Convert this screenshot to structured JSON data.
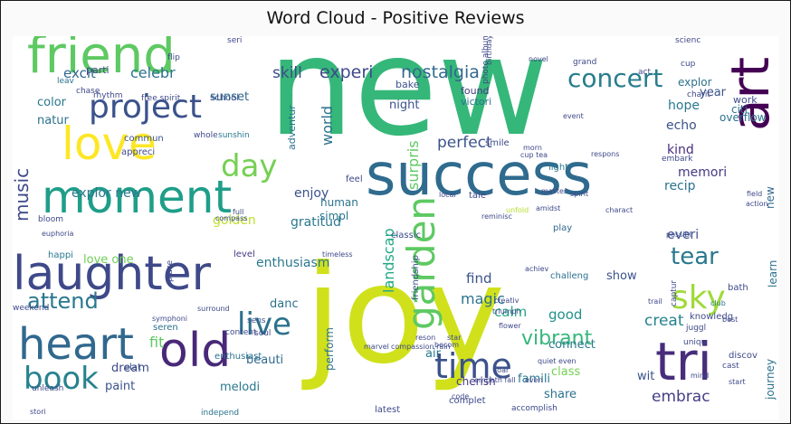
{
  "chart_data": {
    "type": "wordcloud",
    "title": "Word Cloud - Positive Reviews",
    "words": [
      {
        "text": "new",
        "weight": 100,
        "color": "#35b779"
      },
      {
        "text": "joy",
        "weight": 98,
        "color": "#d0e11c"
      },
      {
        "text": "success",
        "weight": 55,
        "color": "#2f6b8e"
      },
      {
        "text": "friend",
        "weight": 40,
        "color": "#5ec962"
      },
      {
        "text": "laughter",
        "weight": 40,
        "color": "#3e4989"
      },
      {
        "text": "moment",
        "weight": 38,
        "color": "#1f9e89"
      },
      {
        "text": "heart",
        "weight": 38,
        "color": "#31688e"
      },
      {
        "text": "love",
        "weight": 36,
        "color": "#fde725"
      },
      {
        "text": "art",
        "weight": 33,
        "color": "#440154"
      },
      {
        "text": "old",
        "weight": 32,
        "color": "#482878"
      },
      {
        "text": "project",
        "weight": 30,
        "color": "#3b528b"
      },
      {
        "text": "tri",
        "weight": 30,
        "color": "#472d7b"
      },
      {
        "text": "garden",
        "weight": 27,
        "color": "#5ec962"
      },
      {
        "text": "time",
        "weight": 27,
        "color": "#3b528b"
      },
      {
        "text": "book",
        "weight": 27,
        "color": "#26828e"
      },
      {
        "text": "live",
        "weight": 25,
        "color": "#2c728e"
      },
      {
        "text": "sky",
        "weight": 25,
        "color": "#a0da39"
      },
      {
        "text": "day",
        "weight": 24,
        "color": "#75d054"
      },
      {
        "text": "concert",
        "weight": 20,
        "color": "#287d8e"
      },
      {
        "text": "tear",
        "weight": 18,
        "color": "#2a788e"
      },
      {
        "text": "attend",
        "weight": 18,
        "color": "#2a788e"
      },
      {
        "text": "music",
        "weight": 16,
        "color": "#3e4989"
      },
      {
        "text": "vibrant",
        "weight": 16,
        "color": "#35b779"
      },
      {
        "text": "nostalgia",
        "weight": 14,
        "color": "#31688e"
      },
      {
        "text": "experi",
        "weight": 14,
        "color": "#3e4989"
      },
      {
        "text": "perfect",
        "weight": 14,
        "color": "#3b528b"
      },
      {
        "text": "surpris",
        "weight": 14,
        "color": "#5ec962"
      },
      {
        "text": "landscap",
        "weight": 14,
        "color": "#22a884"
      },
      {
        "text": "world",
        "weight": 13,
        "color": "#2c728e"
      },
      {
        "text": "creat",
        "weight": 14,
        "color": "#26828e"
      },
      {
        "text": "embrac",
        "weight": 14,
        "color": "#433e85"
      },
      {
        "text": "skill",
        "weight": 13,
        "color": "#3e4989"
      },
      {
        "text": "celebr",
        "weight": 13,
        "color": "#2c728e"
      },
      {
        "text": "excit",
        "weight": 12,
        "color": "#31688e"
      },
      {
        "text": "magic",
        "weight": 13,
        "color": "#2c728e"
      },
      {
        "text": "calm",
        "weight": 13,
        "color": "#22a884"
      },
      {
        "text": "good",
        "weight": 13,
        "color": "#21918c"
      },
      {
        "text": "fit",
        "weight": 12,
        "color": "#5ec962"
      },
      {
        "text": "explor new",
        "weight": 11,
        "color": "#2a788e"
      },
      {
        "text": "gratitud",
        "weight": 11,
        "color": "#2a788e"
      },
      {
        "text": "enthusiasm",
        "weight": 11,
        "color": "#2a788e"
      },
      {
        "text": "natur",
        "weight": 11,
        "color": "#2c728e"
      },
      {
        "text": "color",
        "weight": 10,
        "color": "#2a788e"
      },
      {
        "text": "golden",
        "weight": 11,
        "color": "#bddf26"
      },
      {
        "text": "enjoy",
        "weight": 11,
        "color": "#3b528b"
      },
      {
        "text": "hope",
        "weight": 11,
        "color": "#2a788e"
      },
      {
        "text": "echo",
        "weight": 11,
        "color": "#3b528b"
      },
      {
        "text": "kind",
        "weight": 11,
        "color": "#472d7b"
      },
      {
        "text": "memori",
        "weight": 11,
        "color": "#443983"
      },
      {
        "text": "recip",
        "weight": 11,
        "color": "#2c728e"
      },
      {
        "text": "everi",
        "weight": 11,
        "color": "#3b528b"
      },
      {
        "text": "show",
        "weight": 10,
        "color": "#3b528b"
      },
      {
        "text": "love one",
        "weight": 10,
        "color": "#6ece58"
      },
      {
        "text": "paint",
        "weight": 10,
        "color": "#3b528b"
      },
      {
        "text": "dream",
        "weight": 10,
        "color": "#3e4989"
      },
      {
        "text": "melodi",
        "weight": 10,
        "color": "#2a788e"
      },
      {
        "text": "beauti",
        "weight": 10,
        "color": "#31688e"
      },
      {
        "text": "danc",
        "weight": 10,
        "color": "#2c728e"
      },
      {
        "text": "find",
        "weight": 11,
        "color": "#3b528b"
      },
      {
        "text": "connect",
        "weight": 10,
        "color": "#2a788e"
      },
      {
        "text": "class",
        "weight": 10,
        "color": "#75d054"
      },
      {
        "text": "share",
        "weight": 10,
        "color": "#2c728e"
      },
      {
        "text": "wit",
        "weight": 10,
        "color": "#3b528b"
      },
      {
        "text": "journey",
        "weight": 9,
        "color": "#2c728e"
      },
      {
        "text": "learn",
        "weight": 9,
        "color": "#2c728e"
      },
      {
        "text": "new",
        "weight": 9,
        "color": "#31688e"
      },
      {
        "text": "sunset",
        "weight": 9,
        "color": "#31688e"
      },
      {
        "text": "night",
        "weight": 9,
        "color": "#3b528b"
      },
      {
        "text": "year",
        "weight": 9,
        "color": "#3b528b"
      },
      {
        "text": "explor",
        "weight": 9,
        "color": "#2c728e"
      },
      {
        "text": "famili",
        "weight": 9,
        "color": "#2a788e"
      },
      {
        "text": "cherish",
        "weight": 9,
        "color": "#443983"
      },
      {
        "text": "air",
        "weight": 9,
        "color": "#2a788e"
      },
      {
        "text": "perform",
        "weight": 9,
        "color": "#2c728e"
      },
      {
        "text": "human",
        "weight": 9,
        "color": "#2c728e"
      },
      {
        "text": "simpl",
        "weight": 9,
        "color": "#2a788e"
      },
      {
        "text": "found",
        "weight": 8,
        "color": "#443983"
      },
      {
        "text": "victori",
        "weight": 8,
        "color": "#2c728e"
      },
      {
        "text": "bake",
        "weight": 8,
        "color": "#3b528b"
      },
      {
        "text": "adventur",
        "weight": 8,
        "color": "#2c728e"
      },
      {
        "text": "parti",
        "weight": 8,
        "color": "#3e4989"
      },
      {
        "text": "happi",
        "weight": 7,
        "color": "#2a788e"
      },
      {
        "text": "level",
        "weight": 7,
        "color": "#443983"
      },
      {
        "text": "seren",
        "weight": 7,
        "color": "#2c728e"
      },
      {
        "text": "enthusiast",
        "weight": 7,
        "color": "#2c728e"
      },
      {
        "text": "elat",
        "weight": 7,
        "color": "#3b528b"
      },
      {
        "text": "commun",
        "weight": 7,
        "color": "#3b528b"
      },
      {
        "text": "appreci",
        "weight": 7,
        "color": "#3e4989"
      },
      {
        "text": "whole",
        "weight": 6,
        "color": "#3e4989"
      },
      {
        "text": "sunshin",
        "weight": 6,
        "color": "#2a788e"
      },
      {
        "text": "school",
        "weight": 7,
        "color": "#3b528b"
      },
      {
        "text": "friendship",
        "weight": 7,
        "color": "#3b528b"
      },
      {
        "text": "challeng",
        "weight": 7,
        "color": "#2c728e"
      },
      {
        "text": "play",
        "weight": 7,
        "color": "#31688e"
      },
      {
        "text": "light",
        "weight": 7,
        "color": "#2a788e"
      },
      {
        "text": "tale",
        "weight": 7,
        "color": "#3e4989"
      },
      {
        "text": "smile",
        "weight": 7,
        "color": "#3e4989"
      },
      {
        "text": "feel",
        "weight": 7,
        "color": "#3e4989"
      },
      {
        "text": "classic",
        "weight": 7,
        "color": "#3e4989"
      },
      {
        "text": "latest",
        "weight": 7,
        "color": "#3e4989"
      },
      {
        "text": "complet",
        "weight": 7,
        "color": "#3e4989"
      },
      {
        "text": "accomplish",
        "weight": 6,
        "color": "#3e4989"
      },
      {
        "text": "sens",
        "weight": 6,
        "color": "#3b528b"
      },
      {
        "text": "content",
        "weight": 6,
        "color": "#3e4989"
      },
      {
        "text": "independ",
        "weight": 6,
        "color": "#2c728e"
      },
      {
        "text": "unleash",
        "weight": 6,
        "color": "#3e4989"
      },
      {
        "text": "stori",
        "weight": 6,
        "color": "#3e4989"
      },
      {
        "text": "weekend",
        "weight": 6,
        "color": "#3e4989"
      },
      {
        "text": "soul",
        "weight": 6,
        "color": "#3e4989"
      },
      {
        "text": "place",
        "weight": 6,
        "color": "#3e4989"
      },
      {
        "text": "bloom",
        "weight": 6,
        "color": "#3e4989"
      },
      {
        "text": "rhythm",
        "weight": 6,
        "color": "#3e4989"
      },
      {
        "text": "free spirit",
        "weight": 6,
        "color": "#3e4989"
      },
      {
        "text": "chase",
        "weight": 6,
        "color": "#3e4989"
      },
      {
        "text": "leav",
        "weight": 6,
        "color": "#2c728e"
      },
      {
        "text": "flip",
        "weight": 6,
        "color": "#3e4989"
      },
      {
        "text": "seri",
        "weight": 6,
        "color": "#3e4989"
      },
      {
        "text": "scienc",
        "weight": 6,
        "color": "#3e4989"
      },
      {
        "text": "grand",
        "weight": 6,
        "color": "#3e4989"
      },
      {
        "text": "act",
        "weight": 6,
        "color": "#3e4989"
      },
      {
        "text": "novel",
        "weight": 6,
        "color": "#3e4989"
      },
      {
        "text": "citi",
        "weight": 8,
        "color": "#2c728e"
      },
      {
        "text": "work",
        "weight": 7,
        "color": "#3e4989"
      },
      {
        "text": "overflow",
        "weight": 8,
        "color": "#2c728e"
      },
      {
        "text": "embark",
        "weight": 6,
        "color": "#3e4989"
      },
      {
        "text": "charit",
        "weight": 6,
        "color": "#3e4989"
      },
      {
        "text": "photo album",
        "weight": 6,
        "color": "#3e4989"
      },
      {
        "text": "birthday",
        "weight": 6,
        "color": "#3e4989"
      },
      {
        "text": "cup",
        "weight": 6,
        "color": "#3e4989"
      },
      {
        "text": "morn",
        "weight": 5,
        "color": "#3e4989"
      },
      {
        "text": "cup tea",
        "weight": 5,
        "color": "#3e4989"
      },
      {
        "text": "respons",
        "weight": 5,
        "color": "#3e4989"
      },
      {
        "text": "event",
        "weight": 5,
        "color": "#3e4989"
      },
      {
        "text": "compass",
        "weight": 5,
        "color": "#3e4989"
      },
      {
        "text": "timeless",
        "weight": 5,
        "color": "#3e4989"
      },
      {
        "text": "local",
        "weight": 5,
        "color": "#3e4989"
      },
      {
        "text": "reminisc",
        "weight": 5,
        "color": "#3e4989"
      },
      {
        "text": "unfold",
        "weight": 5,
        "color": "#b5de2b"
      },
      {
        "text": "master",
        "weight": 5,
        "color": "#3e4989"
      },
      {
        "text": "amidst",
        "weight": 5,
        "color": "#3e4989"
      },
      {
        "text": "spirit",
        "weight": 5,
        "color": "#3e4989"
      },
      {
        "text": "charact",
        "weight": 5,
        "color": "#3e4989"
      },
      {
        "text": "field",
        "weight": 5,
        "color": "#3e4989"
      },
      {
        "text": "action",
        "weight": 5,
        "color": "#3e4989"
      },
      {
        "text": "possibl",
        "weight": 5,
        "color": "#3e4989"
      },
      {
        "text": "trail",
        "weight": 5,
        "color": "#3e4989"
      },
      {
        "text": "bath",
        "weight": 5,
        "color": "#3e4989"
      },
      {
        "text": "club",
        "weight": 7,
        "color": "#2c728e"
      },
      {
        "text": "captur",
        "weight": 5,
        "color": "#3e4989"
      },
      {
        "text": "knowledg",
        "weight": 6,
        "color": "#3e4989"
      },
      {
        "text": "juggl",
        "weight": 7,
        "color": "#3e4989"
      },
      {
        "text": "best",
        "weight": 6,
        "color": "#3e4989"
      },
      {
        "text": "uniqu",
        "weight": 5,
        "color": "#3e4989"
      },
      {
        "text": "discov",
        "weight": 6,
        "color": "#3e4989"
      },
      {
        "text": "cast",
        "weight": 7,
        "color": "#3e4989"
      },
      {
        "text": "mind",
        "weight": 6,
        "color": "#3e4989"
      },
      {
        "text": "start",
        "weight": 5,
        "color": "#3e4989"
      },
      {
        "text": "creativ",
        "weight": 5,
        "color": "#3e4989"
      },
      {
        "text": "triumph",
        "weight": 5,
        "color": "#3e4989"
      },
      {
        "text": "flower",
        "weight": 5,
        "color": "#3e4989"
      },
      {
        "text": "quiet even",
        "weight": 5,
        "color": "#3e4989"
      },
      {
        "text": "soar",
        "weight": 5,
        "color": "#3e4989"
      },
      {
        "text": "star",
        "weight": 5,
        "color": "#3e4989"
      },
      {
        "text": "becom",
        "weight": 5,
        "color": "#3e4989"
      },
      {
        "text": "reson",
        "weight": 5,
        "color": "#3e4989"
      },
      {
        "text": "marvel",
        "weight": 5,
        "color": "#3e4989"
      },
      {
        "text": "compassion rain",
        "weight": 5,
        "color": "#3e4989"
      },
      {
        "text": "empath fall",
        "weight": 5,
        "color": "#3e4989"
      },
      {
        "text": "code",
        "weight": 5,
        "color": "#3e4989"
      },
      {
        "text": "even",
        "weight": 5,
        "color": "#3e4989"
      },
      {
        "text": "surround",
        "weight": 5,
        "color": "#3e4989"
      },
      {
        "text": "symphoni",
        "weight": 5,
        "color": "#3e4989"
      },
      {
        "text": "euphoria",
        "weight": 5,
        "color": "#3e4989"
      },
      {
        "text": "full",
        "weight": 5,
        "color": "#3e4989"
      },
      {
        "text": "achiev",
        "weight": 5,
        "color": "#3e4989"
      }
    ]
  }
}
